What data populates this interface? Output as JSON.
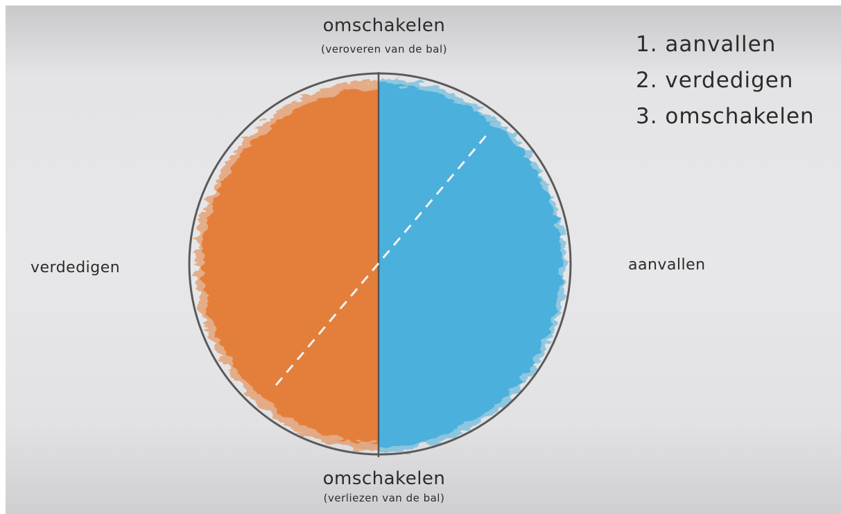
{
  "labels": {
    "top_title": "omschakelen",
    "top_sub": "(veroveren van de bal)",
    "bottom_title": "omschakelen",
    "bottom_sub": "(verliezen van de bal)",
    "left": "verdedigen",
    "right": "aanvallen"
  },
  "phase_list": [
    "1. aanvallen",
    "2. verdedigen",
    "3. omschakelen"
  ],
  "colors": {
    "defend_half": "#e47f3a",
    "attack_half": "#4cb0dc",
    "ring": "#5a5a5a",
    "divider": "#555555",
    "dashed_line": "#f2f2f2"
  }
}
